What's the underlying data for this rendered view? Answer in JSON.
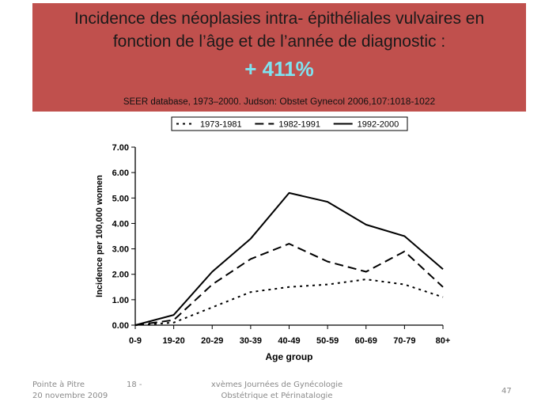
{
  "slide": {
    "title_line1": "Incidence des néoplasies intra- épithéliales vulvaires en",
    "title_line2": "fonction de l’âge et de l’année de diagnostic :",
    "highlight": "+ 411%",
    "source_prefix": "SEER database, 1973–2000.",
    "source_ref": "Judson: Obstet Gynecol 2006,107:1018-1022"
  },
  "footer": {
    "place": "Pointe à Pitre",
    "date": "20 novembre 2009",
    "slide_ref": "18 -",
    "event_line1": "xvèmes Journées de Gynécologie",
    "event_line2": "Obstétrique et Périnatalogie",
    "page_number": "47"
  },
  "colors": {
    "banner": "#c0504d",
    "highlight": "#7fe3f0"
  },
  "chart_data": {
    "type": "line",
    "categories": [
      "0-9",
      "19-20",
      "20-29",
      "30-39",
      "40-49",
      "50-59",
      "60-69",
      "70-79",
      "80+"
    ],
    "series": [
      {
        "name": "1973-1981",
        "style": "dotted",
        "values": [
          0.0,
          0.1,
          0.7,
          1.3,
          1.5,
          1.6,
          1.8,
          1.6,
          1.1
        ]
      },
      {
        "name": "1982-1991",
        "style": "dashed",
        "values": [
          0.0,
          0.2,
          1.6,
          2.6,
          3.2,
          2.5,
          2.1,
          2.9,
          1.5
        ]
      },
      {
        "name": "1992-2000",
        "style": "solid",
        "values": [
          0.0,
          0.4,
          2.1,
          3.4,
          5.2,
          4.85,
          3.95,
          3.5,
          2.2
        ]
      }
    ],
    "xlabel": "Age group",
    "ylabel": "Incidence per 100,000 women",
    "ylim": [
      0,
      7
    ],
    "yticks": [
      "0.00",
      "1.00",
      "2.00",
      "3.00",
      "4.00",
      "5.00",
      "6.00",
      "7.00"
    ],
    "legend_position": "top"
  }
}
